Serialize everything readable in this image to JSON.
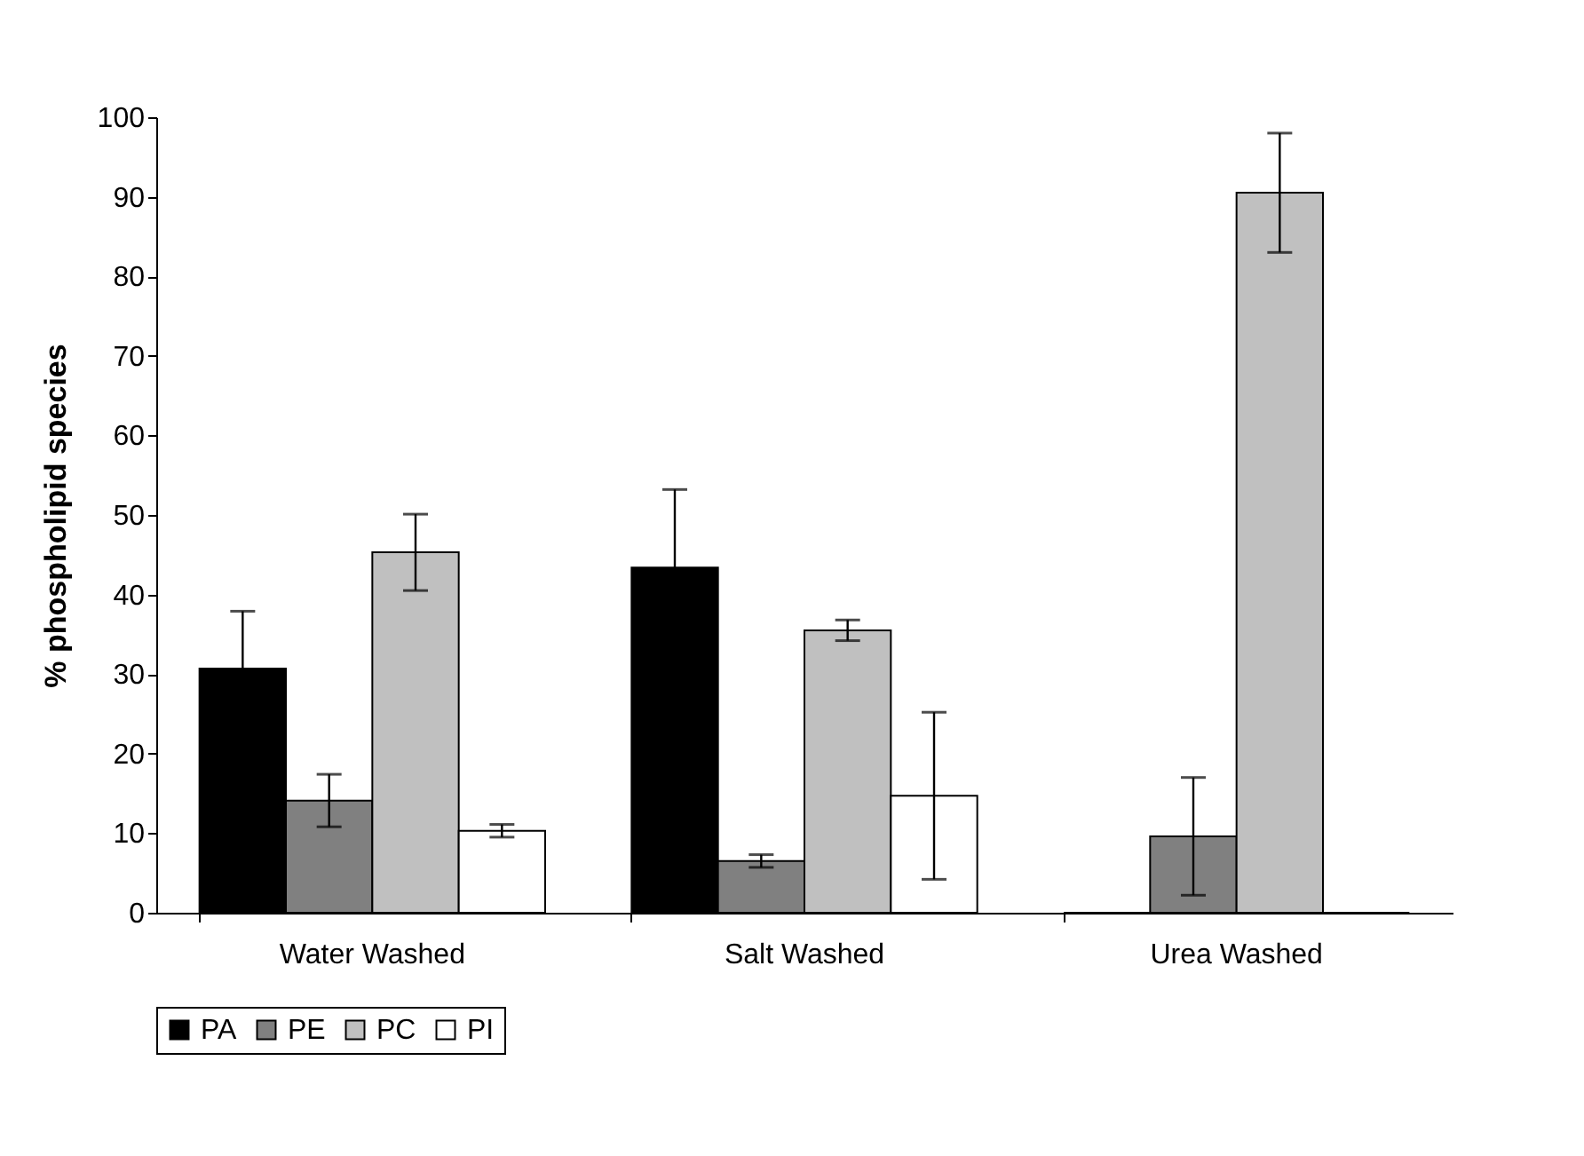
{
  "chart_data": {
    "type": "bar",
    "ylabel": "% phospholipid species",
    "categories": [
      "Water Washed",
      "Salt Washed",
      "Urea Washed"
    ],
    "series": [
      {
        "name": "PA",
        "color": "#000000",
        "values": [
          30.7,
          43.4,
          0
        ],
        "errors": [
          7.2,
          9.8,
          null
        ]
      },
      {
        "name": "PE",
        "color": "#808080",
        "values": [
          14.1,
          6.5,
          9.6
        ],
        "errors": [
          3.3,
          0.8,
          7.4
        ]
      },
      {
        "name": "PC",
        "color": "#c0c0c0",
        "values": [
          45.3,
          35.5,
          90.5
        ],
        "errors": [
          4.8,
          1.3,
          7.5
        ]
      },
      {
        "name": "PI",
        "color": "#ffffff",
        "values": [
          10.3,
          14.7,
          0
        ],
        "errors": [
          0.8,
          10.5,
          null
        ]
      }
    ],
    "ylim": [
      0,
      100
    ],
    "yticks": [
      0,
      10,
      20,
      30,
      40,
      50,
      60,
      70,
      80,
      90,
      100
    ],
    "grid": false,
    "legend": "bottom"
  }
}
